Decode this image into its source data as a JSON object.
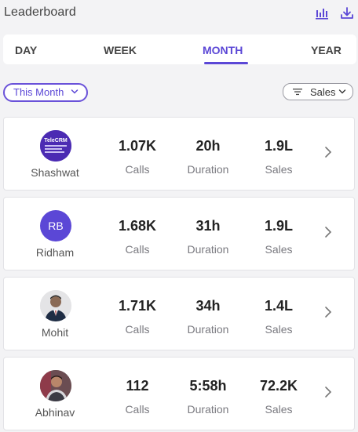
{
  "header": {
    "title": "Leaderboard",
    "icons": [
      "bar-chart-icon",
      "download-icon"
    ]
  },
  "tabs": [
    {
      "label": "DAY"
    },
    {
      "label": "WEEK"
    },
    {
      "label": "MONTH"
    },
    {
      "label": "YEAR"
    }
  ],
  "active_tab": "MONTH",
  "filters": {
    "period_label": "This Month",
    "sort_label": "Sales"
  },
  "stat_labels": {
    "calls": "Calls",
    "duration": "Duration",
    "sales": "Sales"
  },
  "leaders": [
    {
      "name": "Shashwat",
      "avatar": "telecrm-logo",
      "avatar_text": "TeleCRM",
      "calls": "1.07K",
      "duration": "20h",
      "sales": "1.9L"
    },
    {
      "name": "Ridham",
      "avatar": "initials",
      "avatar_text": "RB",
      "calls": "1.68K",
      "duration": "31h",
      "sales": "1.9L"
    },
    {
      "name": "Mohit",
      "avatar": "photo",
      "calls": "1.71K",
      "duration": "34h",
      "sales": "1.4L"
    },
    {
      "name": "Abhinav",
      "avatar": "photo",
      "calls": "112",
      "duration": "5:58h",
      "sales": "72.2K"
    }
  ],
  "colors": {
    "accent": "#5b47d6",
    "background": "#f3f3f5",
    "card": "#ffffff"
  }
}
